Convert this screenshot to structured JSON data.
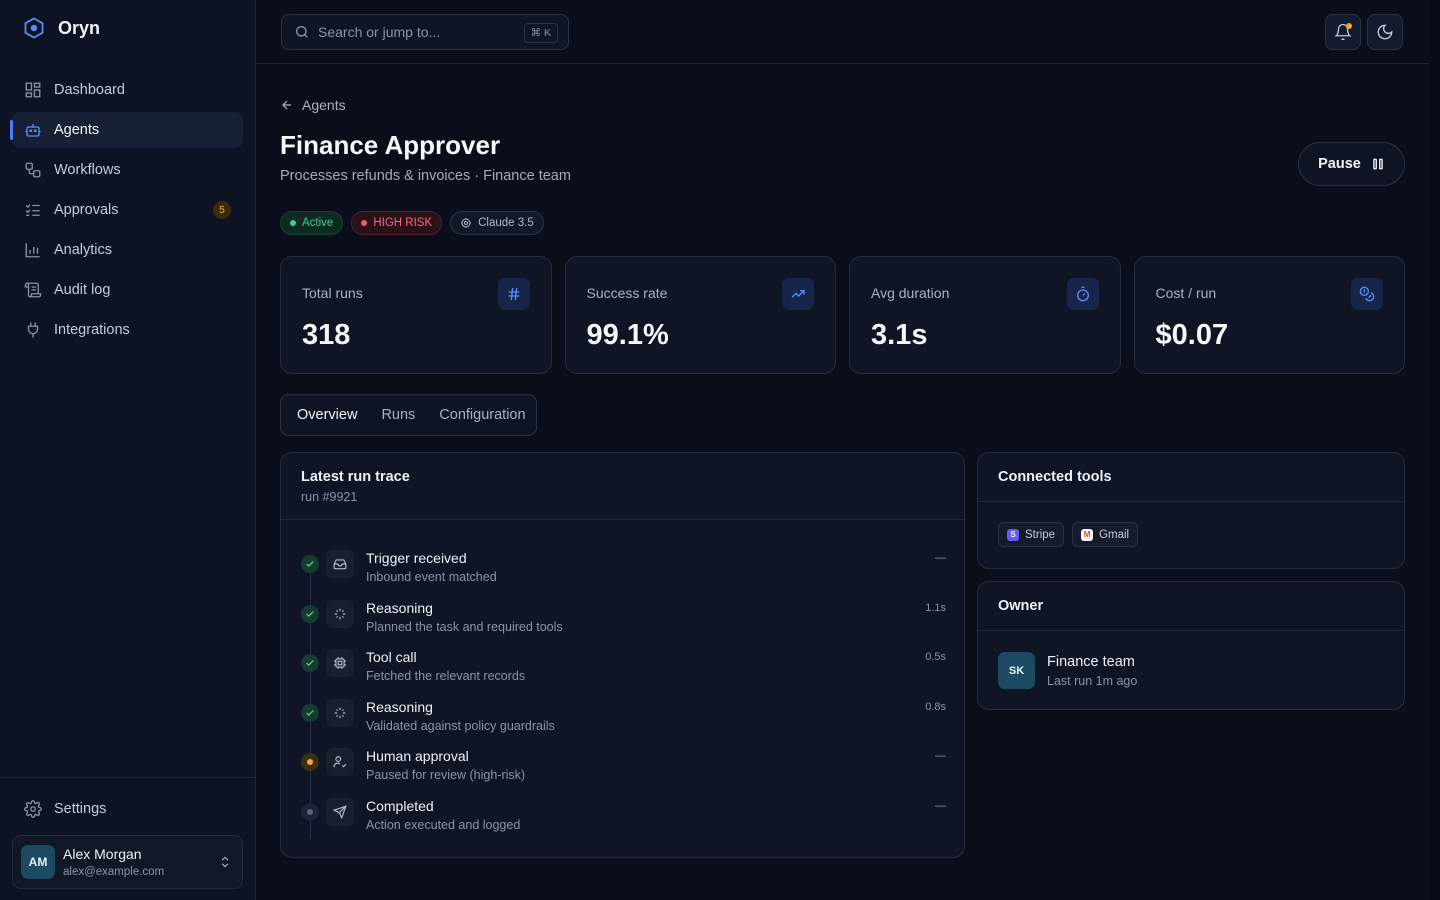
{
  "app": {
    "name": "Oryn"
  },
  "sidebar": {
    "items": [
      {
        "label": "Dashboard",
        "icon": "dashboard-icon"
      },
      {
        "label": "Agents",
        "icon": "bot-icon",
        "active": true
      },
      {
        "label": "Workflows",
        "icon": "workflow-icon"
      },
      {
        "label": "Approvals",
        "icon": "checklist-icon",
        "badge": "5"
      },
      {
        "label": "Analytics",
        "icon": "chart-icon"
      },
      {
        "label": "Audit log",
        "icon": "scroll-icon"
      },
      {
        "label": "Integrations",
        "icon": "plug-icon"
      }
    ],
    "settings_label": "Settings",
    "user": {
      "initials": "AM",
      "name": "Alex Morgan",
      "email": "alex@example.com"
    }
  },
  "topbar": {
    "search_placeholder": "Search or jump to...",
    "search_shortcut": "⌘ K"
  },
  "agent": {
    "back_label": "Agents",
    "title": "Finance Approver",
    "subtitle": "Processes refunds & invoices · Finance team",
    "pause_label": "Pause",
    "badges": {
      "status": "Active",
      "risk": "HIGH RISK",
      "model": "Claude 3.5"
    }
  },
  "stats": [
    {
      "label": "Total runs",
      "value": "318",
      "icon": "hash-icon"
    },
    {
      "label": "Success rate",
      "value": "99.1%",
      "icon": "trending-up-icon"
    },
    {
      "label": "Avg duration",
      "value": "3.1s",
      "icon": "stopwatch-icon"
    },
    {
      "label": "Cost / run",
      "value": "$0.07",
      "icon": "coins-icon"
    }
  ],
  "tabs": [
    "Overview",
    "Runs",
    "Configuration"
  ],
  "trace": {
    "title": "Latest run trace",
    "run": "run #9921",
    "steps": [
      {
        "name": "Trigger received",
        "desc": "Inbound event matched",
        "time": "—",
        "status": "done",
        "icon": "inbox-icon"
      },
      {
        "name": "Reasoning",
        "desc": "Planned the task and required tools",
        "time": "1.1s",
        "status": "done",
        "icon": "sparkles-icon"
      },
      {
        "name": "Tool call",
        "desc": "Fetched the relevant records",
        "time": "0.5s",
        "status": "done",
        "icon": "cpu-icon"
      },
      {
        "name": "Reasoning",
        "desc": "Validated against policy guardrails",
        "time": "0.8s",
        "status": "done",
        "icon": "sparkles-icon"
      },
      {
        "name": "Human approval",
        "desc": "Paused for review (high-risk)",
        "time": "—",
        "status": "pending",
        "icon": "user-check-icon"
      },
      {
        "name": "Completed",
        "desc": "Action executed and logged",
        "time": "—",
        "status": "idle",
        "icon": "send-icon"
      }
    ]
  },
  "tools": {
    "title": "Connected tools",
    "items": [
      {
        "label": "Stripe",
        "glyph": "S",
        "color": "#635bff"
      },
      {
        "label": "Gmail",
        "glyph": "M",
        "color": "#ea4335"
      }
    ]
  },
  "owner": {
    "title": "Owner",
    "initials": "SK",
    "name": "Finance team",
    "meta": "Last run 1m ago"
  },
  "colors": {
    "accent": "#4d7cfe",
    "success": "#3fd18e",
    "warning": "#f0a63a",
    "danger": "#f05a6a"
  }
}
